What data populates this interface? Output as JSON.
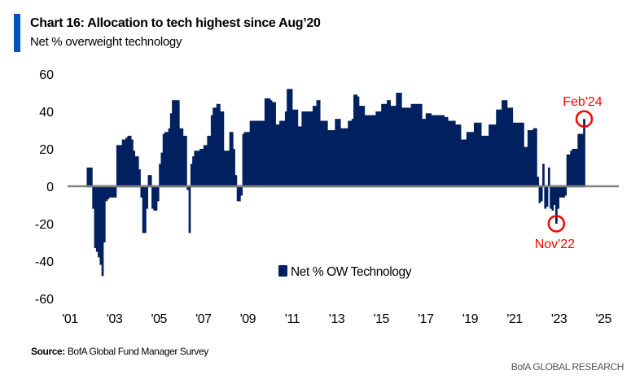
{
  "header": {
    "title": "Chart 16: Allocation to tech highest since Aug’20",
    "subtitle": "Net % overweight technology"
  },
  "footer": {
    "source_label": "Source:",
    "source_text": " BofA Global Fund Manager Survey",
    "brand": "BofA GLOBAL RESEARCH"
  },
  "colors": {
    "accent": "#0052c2",
    "bars": "#002060",
    "zero_line": "#808080",
    "annotation": "#ff0000"
  },
  "chart_data": {
    "type": "bar",
    "title": "Chart 16: Allocation to tech highest since Aug’20",
    "ylabel": "Net % overweight technology",
    "xlabel": "",
    "series": [
      {
        "name": "Net % OW Technology",
        "start": "2001-10",
        "frequency": "monthly",
        "values": [
          10,
          10,
          10,
          -12,
          -33,
          -35,
          -38,
          -42,
          -48,
          -30,
          -8,
          -7,
          -6,
          -6,
          -6,
          -6,
          22,
          22,
          22,
          25,
          25,
          26,
          27,
          27,
          25,
          19,
          16,
          16,
          9,
          -6,
          -25,
          -25,
          -12,
          6,
          6,
          -12,
          -13,
          -13,
          -8,
          12,
          18,
          28,
          29,
          29,
          31,
          39,
          46,
          46,
          46,
          46,
          31,
          31,
          27,
          27,
          -2,
          -25,
          12,
          16,
          19,
          19,
          19,
          20,
          20,
          22,
          22,
          27,
          27,
          38,
          42,
          42,
          44,
          44,
          40,
          40,
          19,
          19,
          19,
          29,
          29,
          20,
          6,
          -8,
          -8,
          -5,
          28,
          29,
          29,
          29,
          35,
          35,
          35,
          35,
          35,
          35,
          35,
          35,
          47,
          47,
          47,
          46,
          45,
          45,
          33,
          33,
          35,
          35,
          35,
          40,
          52,
          52,
          52,
          41,
          41,
          41,
          32,
          32,
          40,
          40,
          40,
          40,
          40,
          40,
          43,
          43,
          46,
          46,
          35,
          35,
          35,
          35,
          30,
          30,
          30,
          30,
          36,
          36,
          36,
          31,
          31,
          31,
          31,
          35,
          35,
          36,
          49,
          49,
          48,
          43,
          43,
          43,
          38,
          38,
          38,
          38,
          38,
          38,
          40,
          40,
          40,
          44,
          44,
          44,
          46,
          46,
          43,
          43,
          43,
          50,
          50,
          50,
          42,
          42,
          42,
          42,
          42,
          44,
          44,
          44,
          44,
          44,
          44,
          36,
          36,
          39,
          39,
          39,
          38,
          38,
          38,
          38,
          38,
          38,
          38,
          37,
          37,
          35,
          35,
          35,
          35,
          33,
          33,
          33,
          25,
          25,
          25,
          29,
          29,
          29,
          29,
          34,
          34,
          34,
          34,
          27,
          27,
          27,
          27,
          33,
          33,
          33,
          33,
          41,
          41,
          41,
          46,
          46,
          46,
          42,
          42,
          42,
          34,
          34,
          34,
          34,
          34,
          34,
          21,
          21,
          30,
          30,
          30,
          31,
          31,
          5,
          -9,
          -8,
          12,
          -12,
          -11,
          10,
          -12,
          -13,
          -10,
          -20,
          -12,
          -6,
          -6,
          -6,
          -5,
          17,
          17,
          19,
          20,
          20,
          20,
          28,
          28,
          28,
          36
        ]
      }
    ],
    "ylim": [
      -60,
      60
    ],
    "yticks": [
      "60",
      "40",
      "20",
      "0",
      "-20",
      "-40",
      "-60"
    ],
    "ytick_values": [
      60,
      40,
      20,
      0,
      -20,
      -40,
      -60
    ],
    "xlim": [
      2001,
      2025
    ],
    "xticks": [
      "'01",
      "'03",
      "'05",
      "'07",
      "'09",
      "'11",
      "'13",
      "'15",
      "'17",
      "'19",
      "'21",
      "'23",
      "'25"
    ],
    "xtick_values": [
      2001,
      2003,
      2005,
      2007,
      2009,
      2011,
      2013,
      2015,
      2017,
      2019,
      2021,
      2023,
      2025
    ],
    "grid": false,
    "legend": {
      "label": "Net % OW Technology",
      "placement": "bottom-center"
    },
    "annotations": [
      {
        "label": "Feb'24",
        "date": "2024-02",
        "value": 36,
        "text_position": "above"
      },
      {
        "label": "Nov'22",
        "date": "2022-11",
        "value": -20,
        "text_position": "below"
      }
    ]
  }
}
